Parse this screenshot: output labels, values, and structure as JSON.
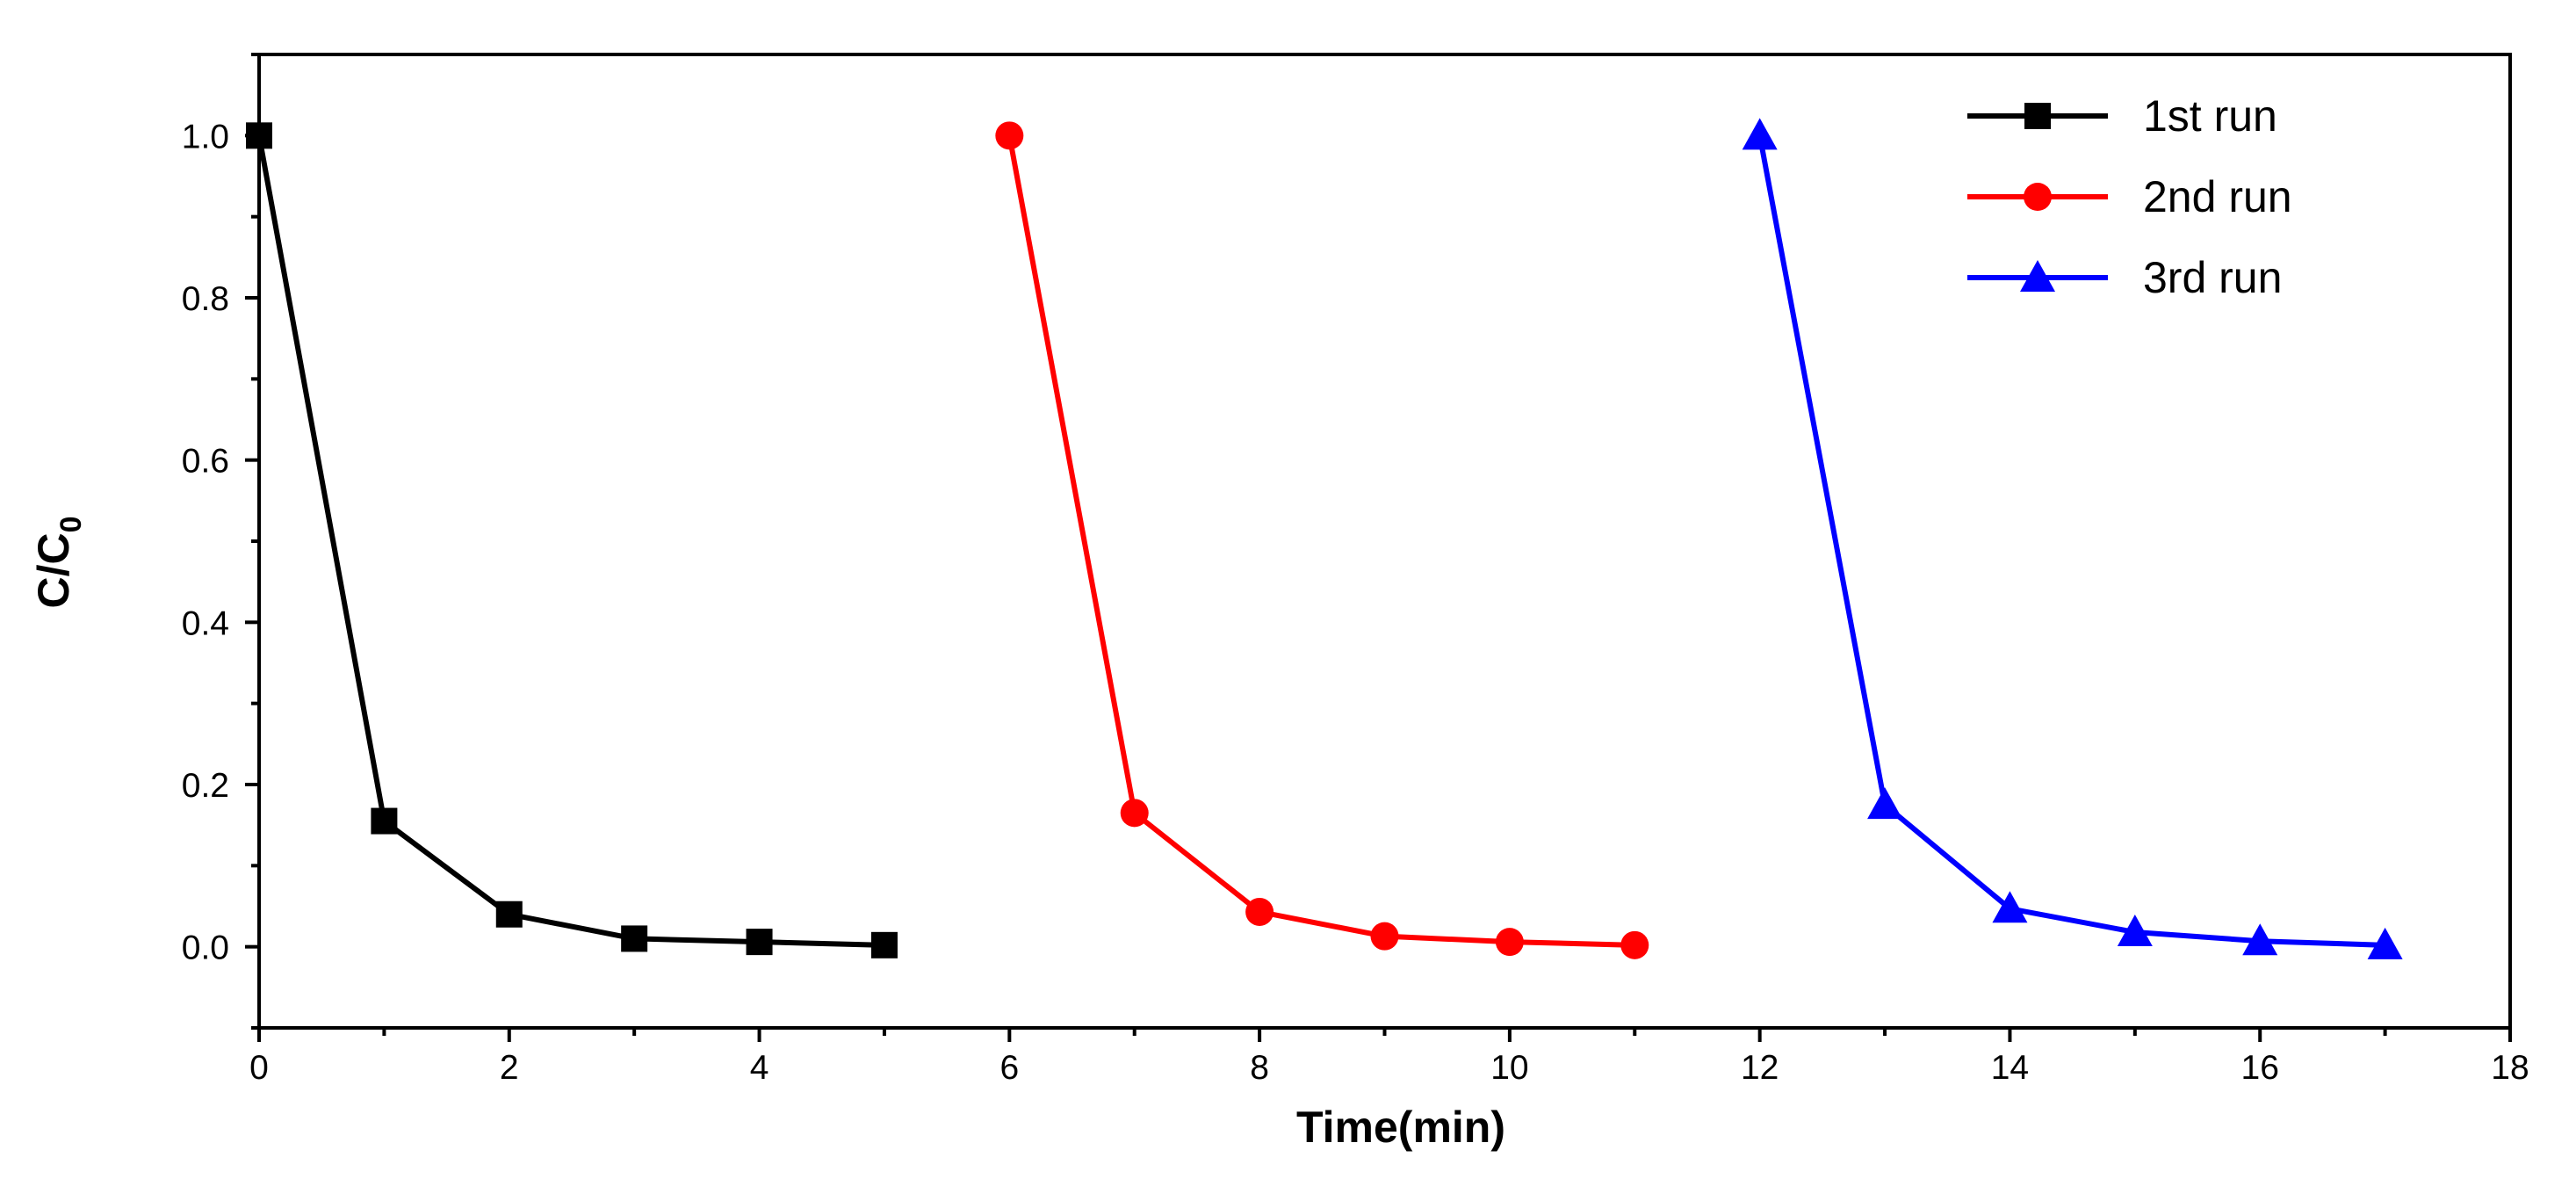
{
  "chart_data": {
    "type": "line",
    "title": "",
    "xlabel": "Time(min)",
    "ylabel_main": "C/C",
    "ylabel_sub": "0",
    "xlim": [
      0,
      18
    ],
    "ylim": [
      -0.1,
      1.1
    ],
    "xticks": [
      0,
      2,
      4,
      6,
      8,
      10,
      12,
      14,
      16,
      18
    ],
    "yticks": [
      0.0,
      0.2,
      0.4,
      0.6,
      0.8,
      1.0
    ],
    "ytick_labels": [
      "0.0",
      "0.2",
      "0.4",
      "0.6",
      "0.8",
      "1.0"
    ],
    "grid": false,
    "legend_position": "top-right",
    "series": [
      {
        "name": "1st run",
        "color": "#000000",
        "marker": "square",
        "x": [
          0,
          1,
          2,
          3,
          4,
          5
        ],
        "y": [
          1.0,
          0.155,
          0.04,
          0.01,
          0.006,
          0.002
        ]
      },
      {
        "name": "2nd run",
        "color": "#ff0000",
        "marker": "circle",
        "x": [
          6,
          7,
          8,
          9,
          10,
          11
        ],
        "y": [
          1.0,
          0.165,
          0.043,
          0.013,
          0.006,
          0.002
        ]
      },
      {
        "name": "3rd run",
        "color": "#0000ff",
        "marker": "triangle",
        "x": [
          12,
          13,
          14,
          15,
          16,
          17
        ],
        "y": [
          1.0,
          0.175,
          0.047,
          0.018,
          0.007,
          0.002
        ]
      }
    ]
  }
}
